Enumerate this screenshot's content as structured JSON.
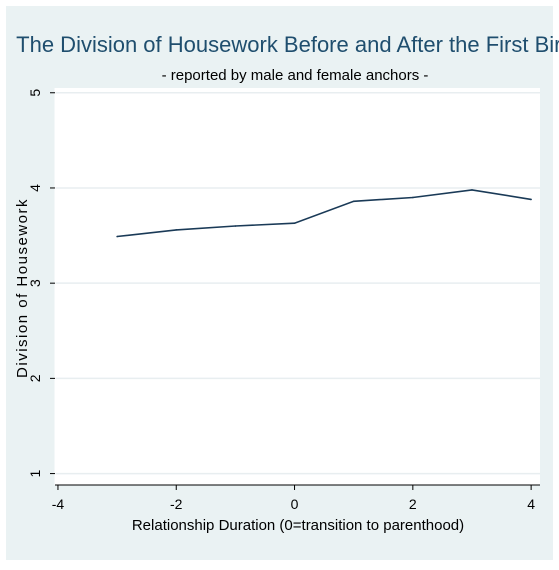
{
  "chart_data": {
    "type": "line",
    "title": "The Division of Housework Before and After the First Birth",
    "subtitle": "- reported by male and female anchors -",
    "xlabel": "Relationship Duration (0=transition to parenthood)",
    "ylabel": "Division of Housework",
    "x_ticks": [
      "-4",
      "-2",
      "0",
      "2",
      "4"
    ],
    "y_ticks": [
      "1",
      "2",
      "3",
      "4",
      "5"
    ],
    "xlim": [
      -4.05,
      4.15
    ],
    "ylim": [
      0.88,
      5.05
    ],
    "grid": true,
    "series": [
      {
        "x": [
          -3,
          -2,
          -1,
          0,
          1,
          2,
          3,
          4
        ],
        "values": [
          3.49,
          3.56,
          3.6,
          3.63,
          3.86,
          3.9,
          3.98,
          3.88
        ]
      }
    ],
    "colors": {
      "line": "#1a3a57",
      "background": "#eaf2f3",
      "plot_area": "#ffffff",
      "grid": "#e8eef0"
    }
  }
}
